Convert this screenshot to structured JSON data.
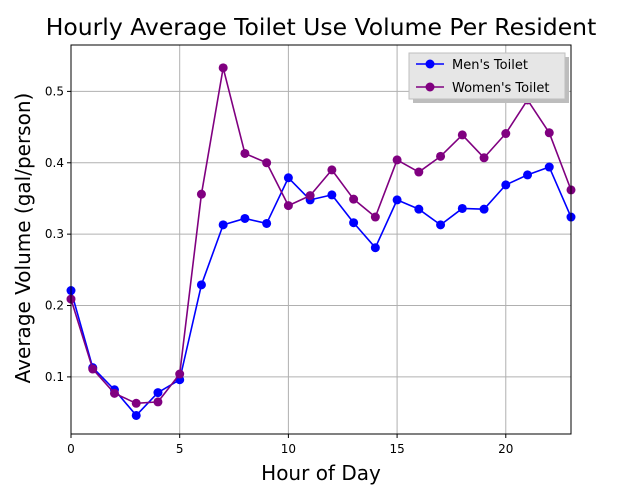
{
  "chart_data": {
    "type": "line",
    "title": "Hourly Average Toilet Use Volume Per Resident",
    "xlabel": "Hour of Day",
    "ylabel": "Average Volume (gal/person)",
    "xlim": [
      0,
      23
    ],
    "ylim": [
      0.02,
      0.565
    ],
    "x_ticks": [
      0,
      5,
      10,
      15,
      20
    ],
    "y_ticks": [
      0.1,
      0.2,
      0.3,
      0.4,
      0.5
    ],
    "grid": true,
    "legend_position": "top-right",
    "x": [
      0,
      1,
      2,
      3,
      4,
      5,
      6,
      7,
      8,
      9,
      10,
      11,
      12,
      13,
      14,
      15,
      16,
      17,
      18,
      19,
      20,
      21,
      22,
      23
    ],
    "series": [
      {
        "name": "Men's Toilet",
        "color": "#0000ff",
        "values": [
          0.221,
          0.113,
          0.082,
          0.046,
          0.078,
          0.096,
          0.229,
          0.313,
          0.322,
          0.315,
          0.379,
          0.348,
          0.355,
          0.316,
          0.281,
          0.348,
          0.335,
          0.313,
          0.336,
          0.335,
          0.369,
          0.383,
          0.394,
          0.324
        ]
      },
      {
        "name": "Women's Toilet",
        "color": "#800080",
        "values": [
          0.209,
          0.111,
          0.077,
          0.063,
          0.065,
          0.104,
          0.356,
          0.533,
          0.413,
          0.4,
          0.34,
          0.354,
          0.39,
          0.349,
          0.324,
          0.404,
          0.387,
          0.409,
          0.439,
          0.407,
          0.441,
          0.488,
          0.442,
          0.362
        ]
      }
    ]
  }
}
